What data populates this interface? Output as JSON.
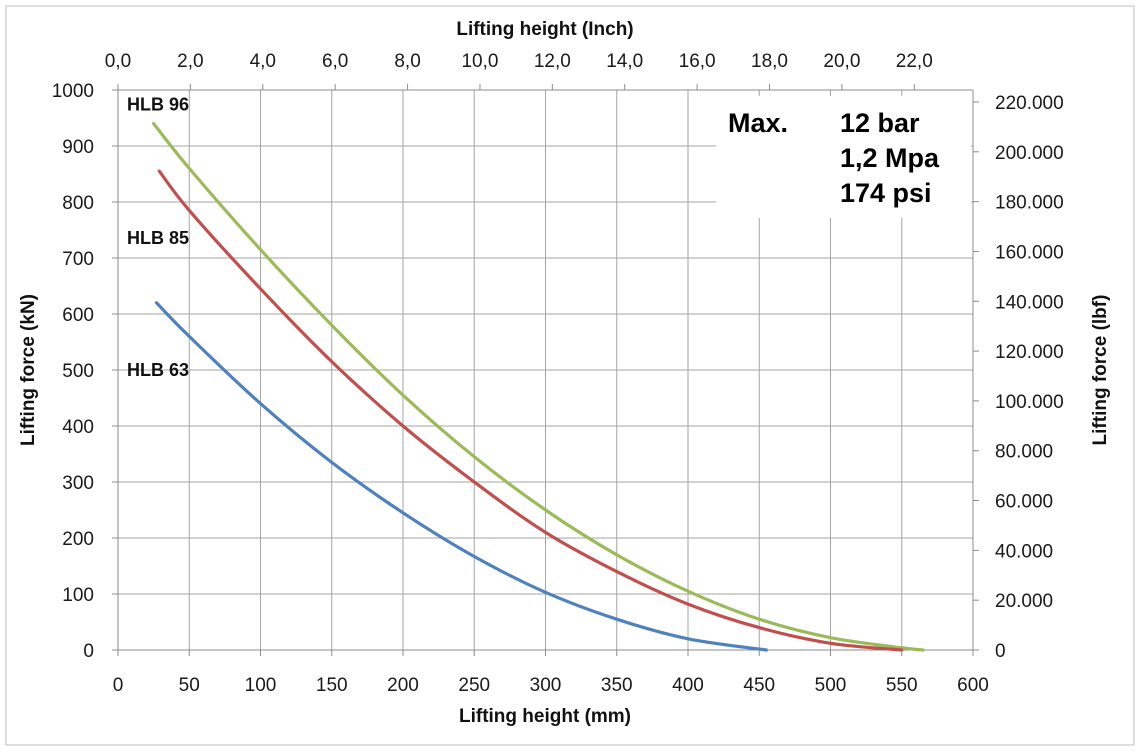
{
  "chart_data": {
    "type": "line",
    "x_axis_bottom": {
      "label": "Lifting height (mm)",
      "range": [
        0,
        600
      ],
      "ticks": [
        "0",
        "50",
        "100",
        "150",
        "200",
        "250",
        "300",
        "350",
        "400",
        "450",
        "500",
        "550",
        "600"
      ]
    },
    "x_axis_top": {
      "label": "Lifting height (Inch)",
      "range": [
        0,
        23.622
      ],
      "ticks": [
        "0,0",
        "2,0",
        "4,0",
        "6,0",
        "8,0",
        "10,0",
        "12,0",
        "14,0",
        "16,0",
        "18,0",
        "20,0",
        "22,0"
      ]
    },
    "y_axis_left": {
      "label": "Lifting force (kN)",
      "range": [
        0,
        1000
      ],
      "ticks": [
        "0",
        "100",
        "200",
        "300",
        "400",
        "500",
        "600",
        "700",
        "800",
        "900",
        "1000"
      ]
    },
    "y_axis_right": {
      "label": "Lifting force (lbf)",
      "range": [
        0,
        224809
      ],
      "ticks": [
        "0",
        "20.000",
        "40.000",
        "60.000",
        "80.000",
        "100.000",
        "120.000",
        "140.000",
        "160.000",
        "180.000",
        "200.000",
        "220.000"
      ]
    },
    "grid": true,
    "annotation": {
      "label": "Max.",
      "lines": [
        "12 bar",
        "1,2 Mpa",
        "174 psi"
      ]
    },
    "series": [
      {
        "name": "HLB 96",
        "color": "#9bbb59",
        "x": [
          25,
          50,
          100,
          150,
          200,
          250,
          300,
          350,
          400,
          450,
          500,
          550,
          565
        ],
        "y": [
          940,
          860,
          715,
          580,
          455,
          345,
          250,
          170,
          105,
          55,
          22,
          4,
          0
        ]
      },
      {
        "name": "HLB 85",
        "color": "#c0504d",
        "x": [
          29,
          50,
          100,
          150,
          200,
          250,
          300,
          350,
          400,
          450,
          500,
          550
        ],
        "y": [
          855,
          785,
          645,
          515,
          400,
          300,
          210,
          140,
          82,
          40,
          12,
          0
        ]
      },
      {
        "name": "HLB 63",
        "color": "#4f81bd",
        "x": [
          27,
          50,
          100,
          150,
          200,
          250,
          300,
          350,
          400,
          455
        ],
        "y": [
          620,
          560,
          440,
          335,
          245,
          167,
          103,
          55,
          20,
          0
        ]
      }
    ]
  }
}
